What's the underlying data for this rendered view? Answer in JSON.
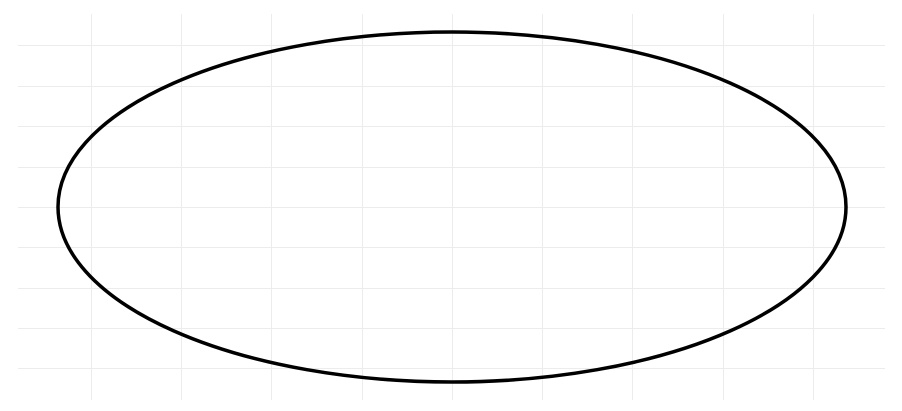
{
  "canvas": {
    "background_color": "#ffffff",
    "grid": {
      "visible": true,
      "color": "#ececec"
    }
  },
  "shapes": [
    {
      "type": "ellipse",
      "stroke_color": "#000000",
      "fill": "none"
    }
  ]
}
